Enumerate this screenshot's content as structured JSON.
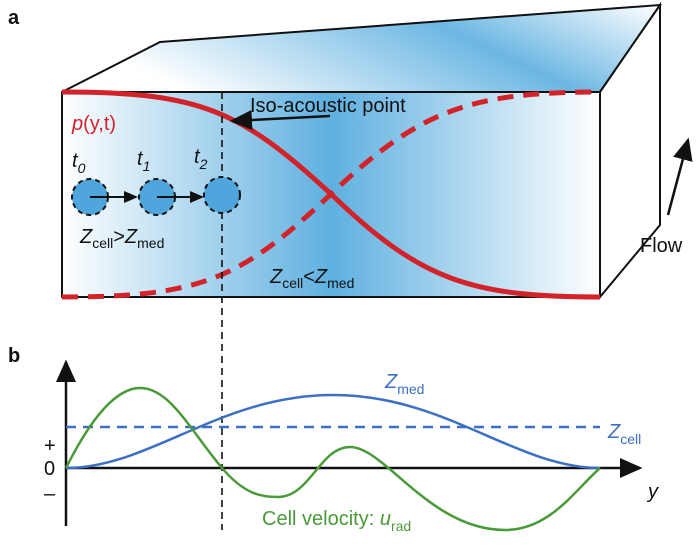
{
  "panel_a": {
    "label": "a",
    "pressure": {
      "base": "p",
      "args": "(y,t)"
    },
    "iso_label": "Iso-acoustic point",
    "times": [
      {
        "base": "t",
        "sub": "0"
      },
      {
        "base": "t",
        "sub": "1"
      },
      {
        "base": "t",
        "sub": "2"
      }
    ],
    "left_relation": {
      "a": "Z",
      "a_sub": "cell",
      "op": ">",
      "b": "Z",
      "b_sub": "med"
    },
    "right_relation": {
      "a": "Z",
      "a_sub": "cell",
      "op": "<",
      "b": "Z",
      "b_sub": "med"
    },
    "flow": "Flow"
  },
  "panel_b": {
    "label": "b",
    "zmed": {
      "base": "Z",
      "sub": "med"
    },
    "zcell": {
      "base": "Z",
      "sub": "cell"
    },
    "plus": "+",
    "zero": "0",
    "minus": "–",
    "axis": "y",
    "velocity": {
      "text": "Cell velocity: ",
      "base": "u",
      "sub": "rad"
    }
  }
}
